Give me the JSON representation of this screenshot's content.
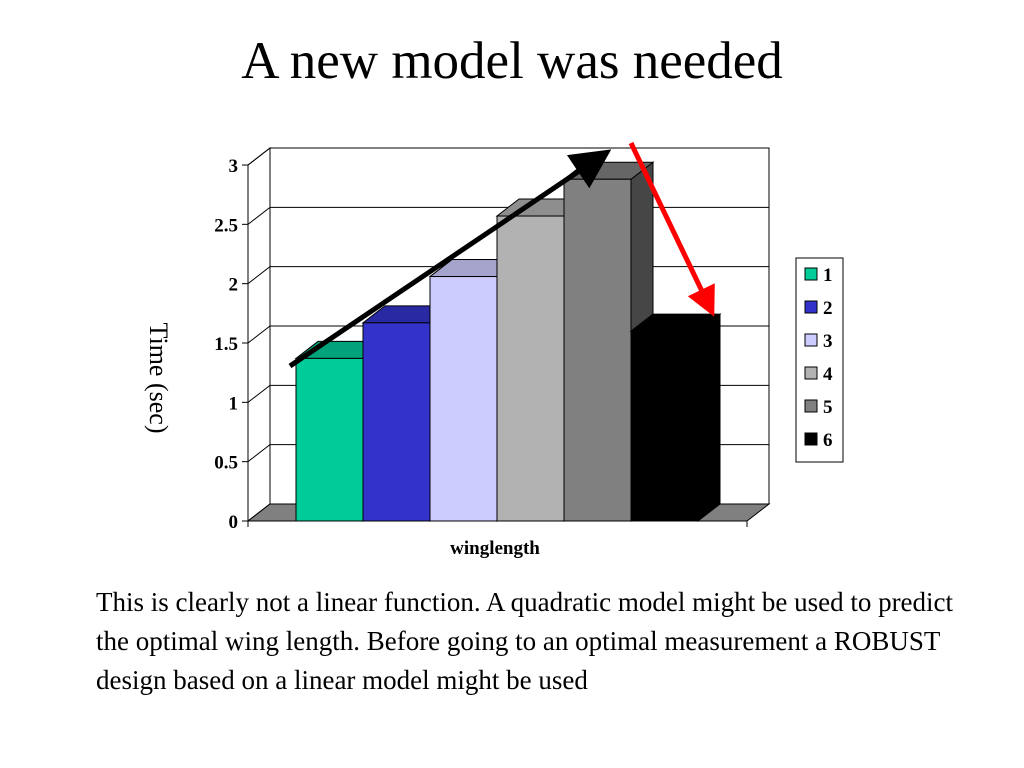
{
  "slide": {
    "title": "A new model was needed",
    "body": "This is clearly not a linear function. A quadratic model might be used to predict the optimal wing length. Before going to an optimal measurement a ROBUST design based on a linear model might be used"
  },
  "chart_data": {
    "type": "bar",
    "style": "3d",
    "title": "",
    "xlabel": "winglength",
    "ylabel": "Time (sec)",
    "ylim": [
      0,
      3
    ],
    "yticks": [
      "0",
      "0.5",
      "1",
      "1.5",
      "2",
      "2.5",
      "3"
    ],
    "grid": true,
    "legend_position": "right",
    "series": [
      {
        "name": "1",
        "value": 1.37,
        "color": "#00cc99"
      },
      {
        "name": "2",
        "value": 1.67,
        "color": "#3333cc"
      },
      {
        "name": "3",
        "value": 2.06,
        "color": "#ccccff"
      },
      {
        "name": "4",
        "value": 2.57,
        "color": "#b2b2b2"
      },
      {
        "name": "5",
        "value": 2.88,
        "color": "#808080"
      },
      {
        "name": "6",
        "value": 1.6,
        "color": "#000000"
      }
    ],
    "annotations": [
      {
        "type": "arrow",
        "color": "#000000",
        "meaning": "rising trend over bars 1 to 5"
      },
      {
        "type": "arrow",
        "color": "#ff0000",
        "meaning": "drop from bar 5 to bar 6"
      }
    ]
  }
}
